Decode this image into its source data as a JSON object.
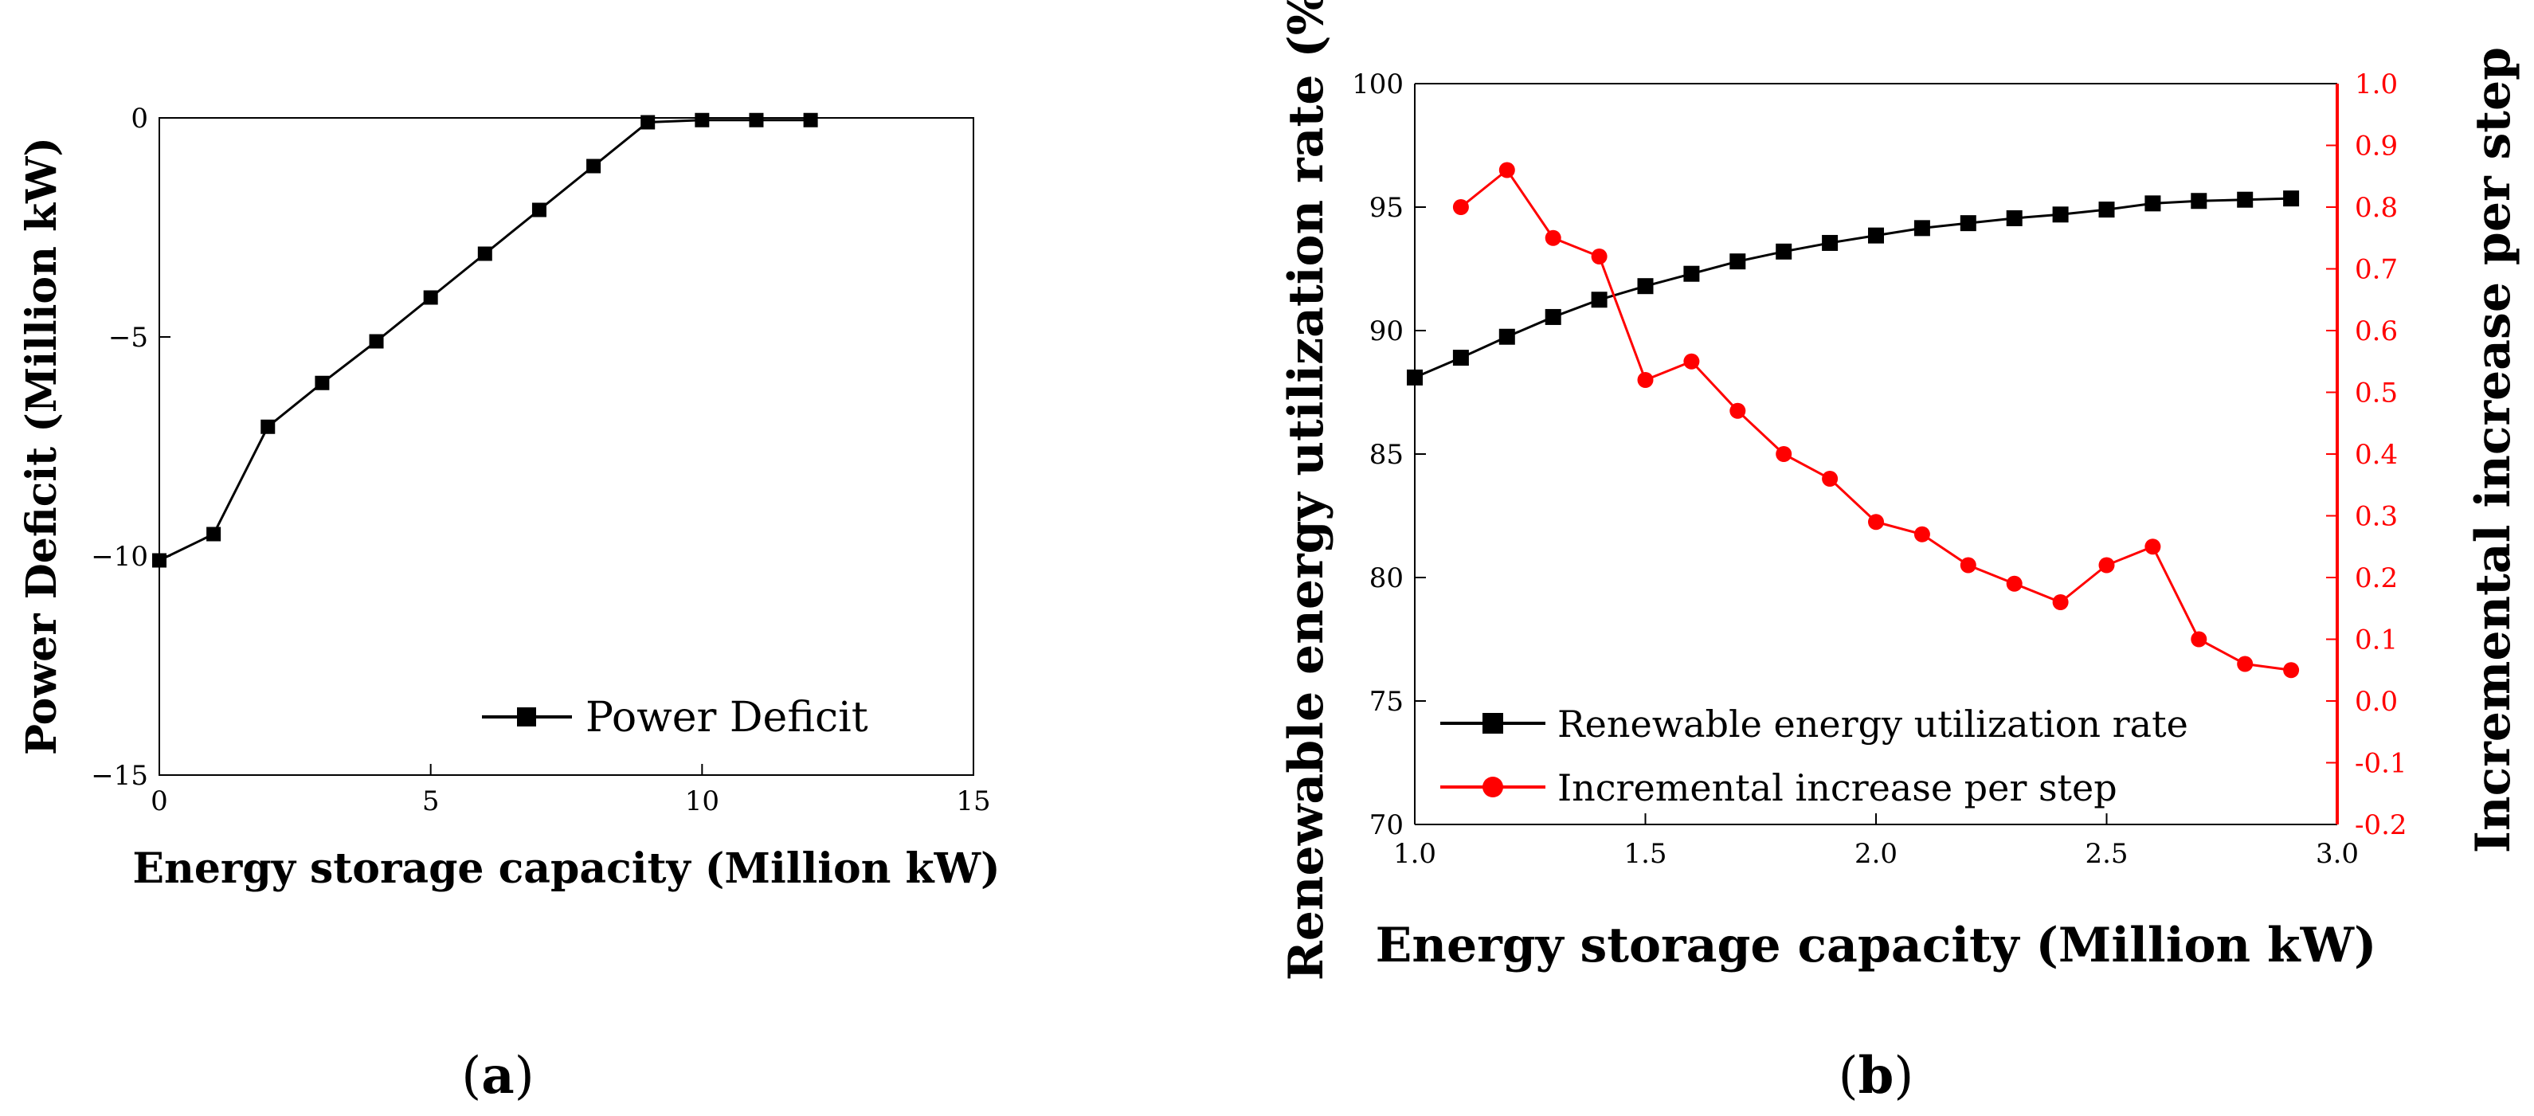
{
  "colors": {
    "black": "#000000",
    "red": "#ff0000"
  },
  "panel_labels": {
    "a": "a",
    "b": "b",
    "open": "(",
    "close": ")"
  },
  "chart_data": [
    {
      "id": "a",
      "type": "line",
      "xlabel": "Energy storage capacity (Million kW)",
      "ylabel": "Power Deficit (Million kW)",
      "xlim": [
        0,
        15
      ],
      "ylim": [
        -15,
        0
      ],
      "xticks": [
        0,
        5,
        10,
        15
      ],
      "yticks": [
        -15,
        -10,
        -5,
        0
      ],
      "xtick_labels": [
        "0",
        "5",
        "10",
        "15"
      ],
      "ytick_labels": [
        "−15",
        "−10",
        "−5",
        "0"
      ],
      "legend_position": "bottom-right",
      "series": [
        {
          "name": "Power Deficit",
          "color": "#000000",
          "marker": "square",
          "x": [
            0,
            1,
            2,
            3,
            4,
            5,
            6,
            7,
            8,
            9,
            10,
            11,
            12
          ],
          "y": [
            -10.1,
            -9.5,
            -7.05,
            -6.05,
            -5.1,
            -4.1,
            -3.1,
            -2.1,
            -1.1,
            -0.1,
            -0.05,
            -0.05,
            -0.05
          ]
        }
      ]
    },
    {
      "id": "b",
      "type": "line",
      "xlabel": "Energy storage capacity (Million kW)",
      "ylabel_left": "Renewable energy utilization rate (%)",
      "ylabel_right": "Incremental increase per step",
      "xlim": [
        1.0,
        3.0
      ],
      "ylim_left": [
        70,
        100
      ],
      "ylim_right": [
        -0.2,
        1.0
      ],
      "xticks": [
        1.0,
        1.5,
        2.0,
        2.5,
        3.0
      ],
      "yticks_left": [
        70,
        75,
        80,
        85,
        90,
        95,
        100
      ],
      "yticks_right": [
        -0.2,
        -0.1,
        0.0,
        0.1,
        0.2,
        0.3,
        0.4,
        0.5,
        0.6,
        0.7,
        0.8,
        0.9,
        1.0
      ],
      "xtick_labels": [
        "1.0",
        "1.5",
        "2.0",
        "2.5",
        "3.0"
      ],
      "ytick_labels_left": [
        "70",
        "75",
        "80",
        "85",
        "90",
        "95",
        "100"
      ],
      "ytick_labels_right": [
        "-0.2",
        "-0.1",
        "0.0",
        "0.1",
        "0.2",
        "0.3",
        "0.4",
        "0.5",
        "0.6",
        "0.7",
        "0.8",
        "0.9",
        "1.0"
      ],
      "legend_position": "bottom-left",
      "series": [
        {
          "name": "Renewable energy utilization rate",
          "axis": "left",
          "color": "#000000",
          "marker": "square",
          "x": [
            1.0,
            1.1,
            1.2,
            1.3,
            1.4,
            1.5,
            1.6,
            1.7,
            1.8,
            1.9,
            2.0,
            2.1,
            2.2,
            2.3,
            2.4,
            2.5,
            2.6,
            2.7,
            2.8,
            2.9
          ],
          "y": [
            88.1,
            88.9,
            89.75,
            90.55,
            91.25,
            91.8,
            92.3,
            92.8,
            93.2,
            93.55,
            93.85,
            94.15,
            94.35,
            94.55,
            94.7,
            94.9,
            95.15,
            95.25,
            95.3,
            95.35
          ]
        },
        {
          "name": "Incremental increase per step",
          "axis": "right",
          "color": "#ff0000",
          "marker": "circle",
          "x": [
            1.1,
            1.2,
            1.3,
            1.4,
            1.5,
            1.6,
            1.7,
            1.8,
            1.9,
            2.0,
            2.1,
            2.2,
            2.3,
            2.4,
            2.5,
            2.6,
            2.7,
            2.8,
            2.9
          ],
          "y": [
            0.8,
            0.86,
            0.75,
            0.72,
            0.52,
            0.55,
            0.47,
            0.4,
            0.36,
            0.29,
            0.27,
            0.22,
            0.19,
            0.16,
            0.22,
            0.25,
            0.1,
            0.06,
            0.05
          ]
        }
      ]
    }
  ]
}
